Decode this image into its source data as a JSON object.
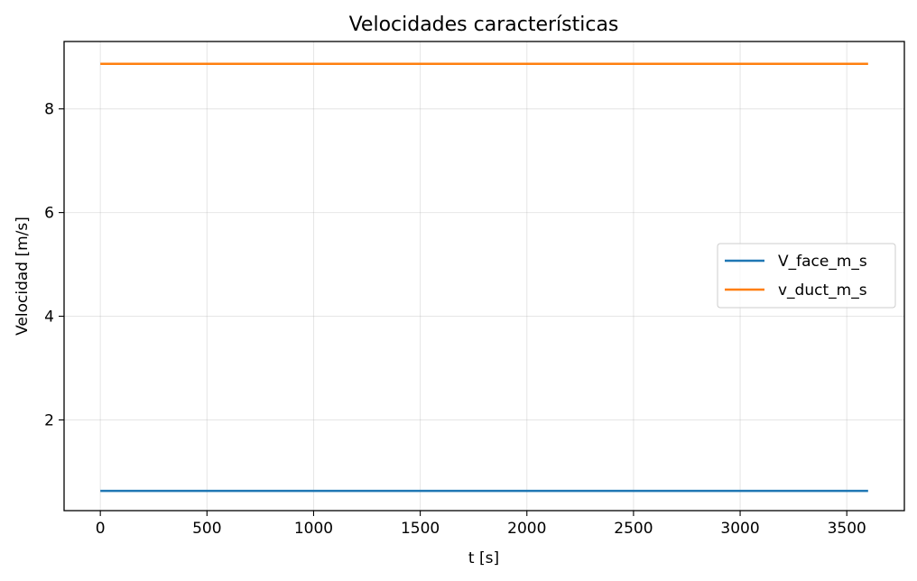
{
  "chart_data": {
    "type": "line",
    "title": "Velocidades características",
    "xlabel": "t [s]",
    "ylabel": "Velocidad [m/s]",
    "xlim": [
      -170,
      3770
    ],
    "ylim": [
      0.25,
      9.3
    ],
    "xticks": [
      0,
      500,
      1000,
      1500,
      2000,
      2500,
      3000,
      3500
    ],
    "yticks": [
      2,
      4,
      6,
      8
    ],
    "grid": true,
    "legend_position": "center-right",
    "series": [
      {
        "name": "V_face_m_s",
        "color": "#1f77b4",
        "x": [
          0,
          3600
        ],
        "y": [
          0.63,
          0.63
        ]
      },
      {
        "name": "v_duct_m_s",
        "color": "#ff7f0e",
        "x": [
          0,
          3600
        ],
        "y": [
          8.87,
          8.87
        ]
      }
    ]
  }
}
